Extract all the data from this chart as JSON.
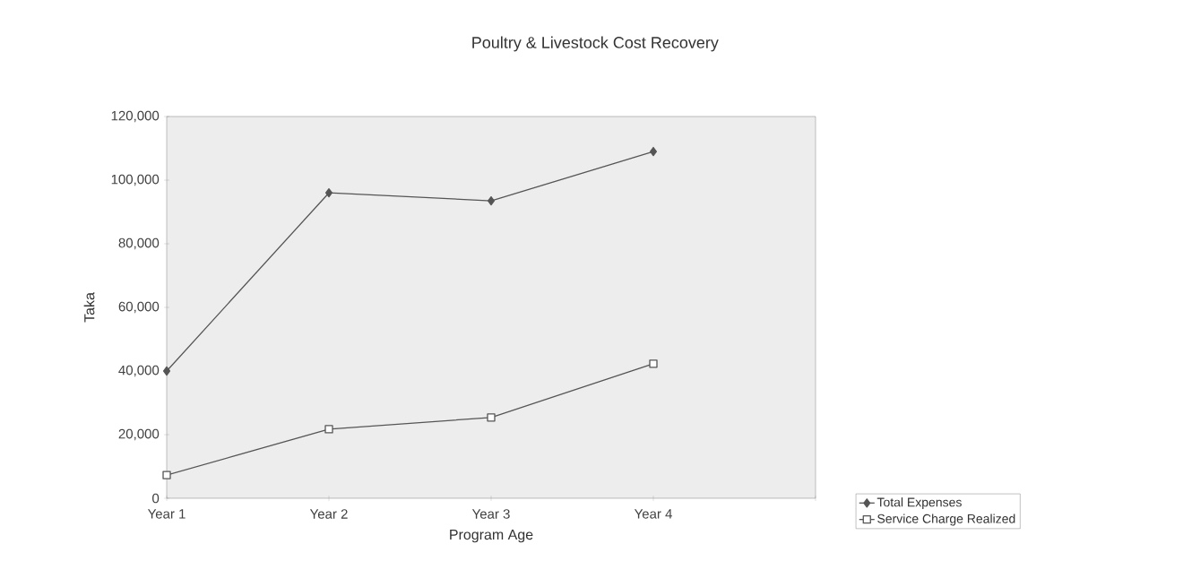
{
  "chart_data": {
    "type": "line",
    "title": "Poultry & Livestock Cost Recovery",
    "xlabel": "Program Age",
    "ylabel": "Taka",
    "categories": [
      "Year 1",
      "Year 2",
      "Year 3",
      "Year 4",
      null
    ],
    "series": [
      {
        "name": "Total Expenses",
        "color": "#555555",
        "marker": "diamond",
        "values": [
          40000,
          96000,
          93500,
          109000,
          null
        ]
      },
      {
        "name": "Service Charge Realized",
        "color": "#555555",
        "marker": "square",
        "values": [
          7300,
          21700,
          25400,
          42300,
          null
        ]
      }
    ],
    "ylim": [
      0,
      120000
    ],
    "yticks": [
      {
        "value": 0,
        "label": "0"
      },
      {
        "value": 20000,
        "label": "20,000"
      },
      {
        "value": 40000,
        "label": "40,000"
      },
      {
        "value": 60000,
        "label": "60,000"
      },
      {
        "value": 80000,
        "label": "80,000"
      },
      {
        "value": 100000,
        "label": "100,000"
      },
      {
        "value": 120000,
        "label": "120,000"
      }
    ],
    "grid": false,
    "legend": "bottom right",
    "line_style": "solid"
  }
}
